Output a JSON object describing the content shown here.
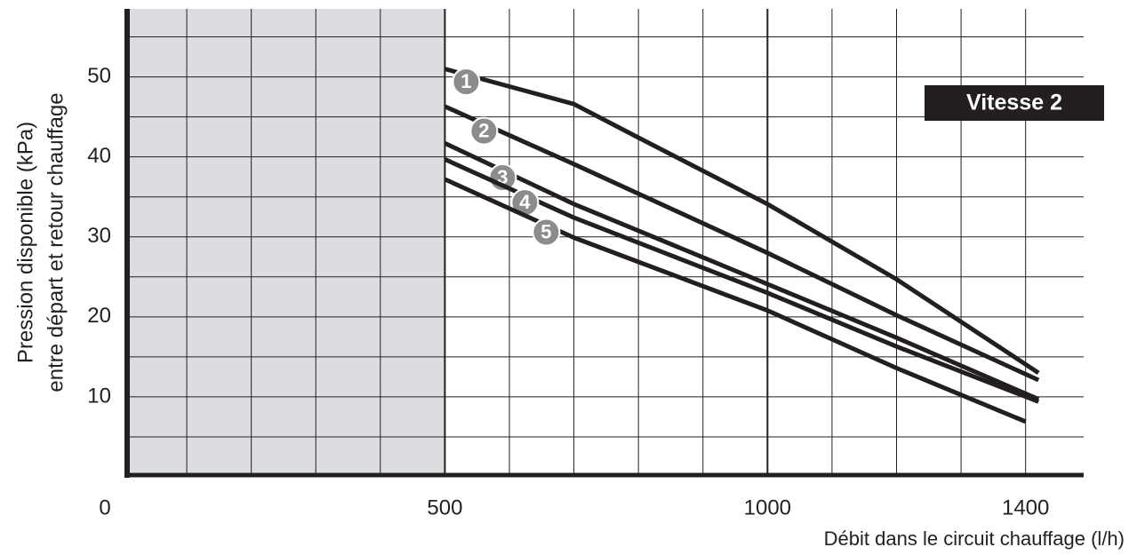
{
  "chart_data": {
    "type": "line",
    "ylabel": [
      "Pression disponible (kPa)",
      "entre départ et retour chauffage"
    ],
    "xlabel": "Débit dans le circuit chauffage (l/h)",
    "annotation": "Vitesse 2",
    "xlim": [
      0,
      1490
    ],
    "ylim": [
      0,
      58.5
    ],
    "xticks": [
      0,
      500,
      1000,
      1400
    ],
    "yticks": [
      10,
      20,
      30,
      40,
      50
    ],
    "xgrid": [
      100,
      200,
      300,
      400,
      500,
      600,
      700,
      800,
      900,
      1000,
      1100,
      1200,
      1300,
      1400
    ],
    "ygrid": [
      5,
      10,
      15,
      20,
      25,
      30,
      35,
      40,
      45,
      50,
      55
    ],
    "shaded_range": [
      0,
      500
    ],
    "grid": true,
    "series": [
      {
        "name": "1",
        "color": "#231f20",
        "x": [
          500,
          700,
          800,
          1000,
          1200,
          1420
        ],
        "values": [
          51,
          46.6,
          42.4,
          34.1,
          24.7,
          13
        ]
      },
      {
        "name": "2",
        "color": "#231f20",
        "x": [
          500,
          700,
          1000,
          1200,
          1420
        ],
        "values": [
          46.3,
          39.1,
          28,
          20.2,
          12.1
        ]
      },
      {
        "name": "3",
        "color": "#231f20",
        "x": [
          500,
          700,
          1000,
          1200,
          1420
        ],
        "values": [
          41.7,
          34.1,
          24.1,
          17.4,
          9.7
        ]
      },
      {
        "name": "4",
        "color": "#231f20",
        "x": [
          500,
          700,
          1000,
          1200,
          1420
        ],
        "values": [
          39.7,
          32.4,
          23,
          16.3,
          9.4
        ]
      },
      {
        "name": "5",
        "color": "#231f20",
        "x": [
          500,
          700,
          1000,
          1200,
          1400
        ],
        "values": [
          37.2,
          29.9,
          20.8,
          13.6,
          6.9
        ]
      }
    ]
  }
}
